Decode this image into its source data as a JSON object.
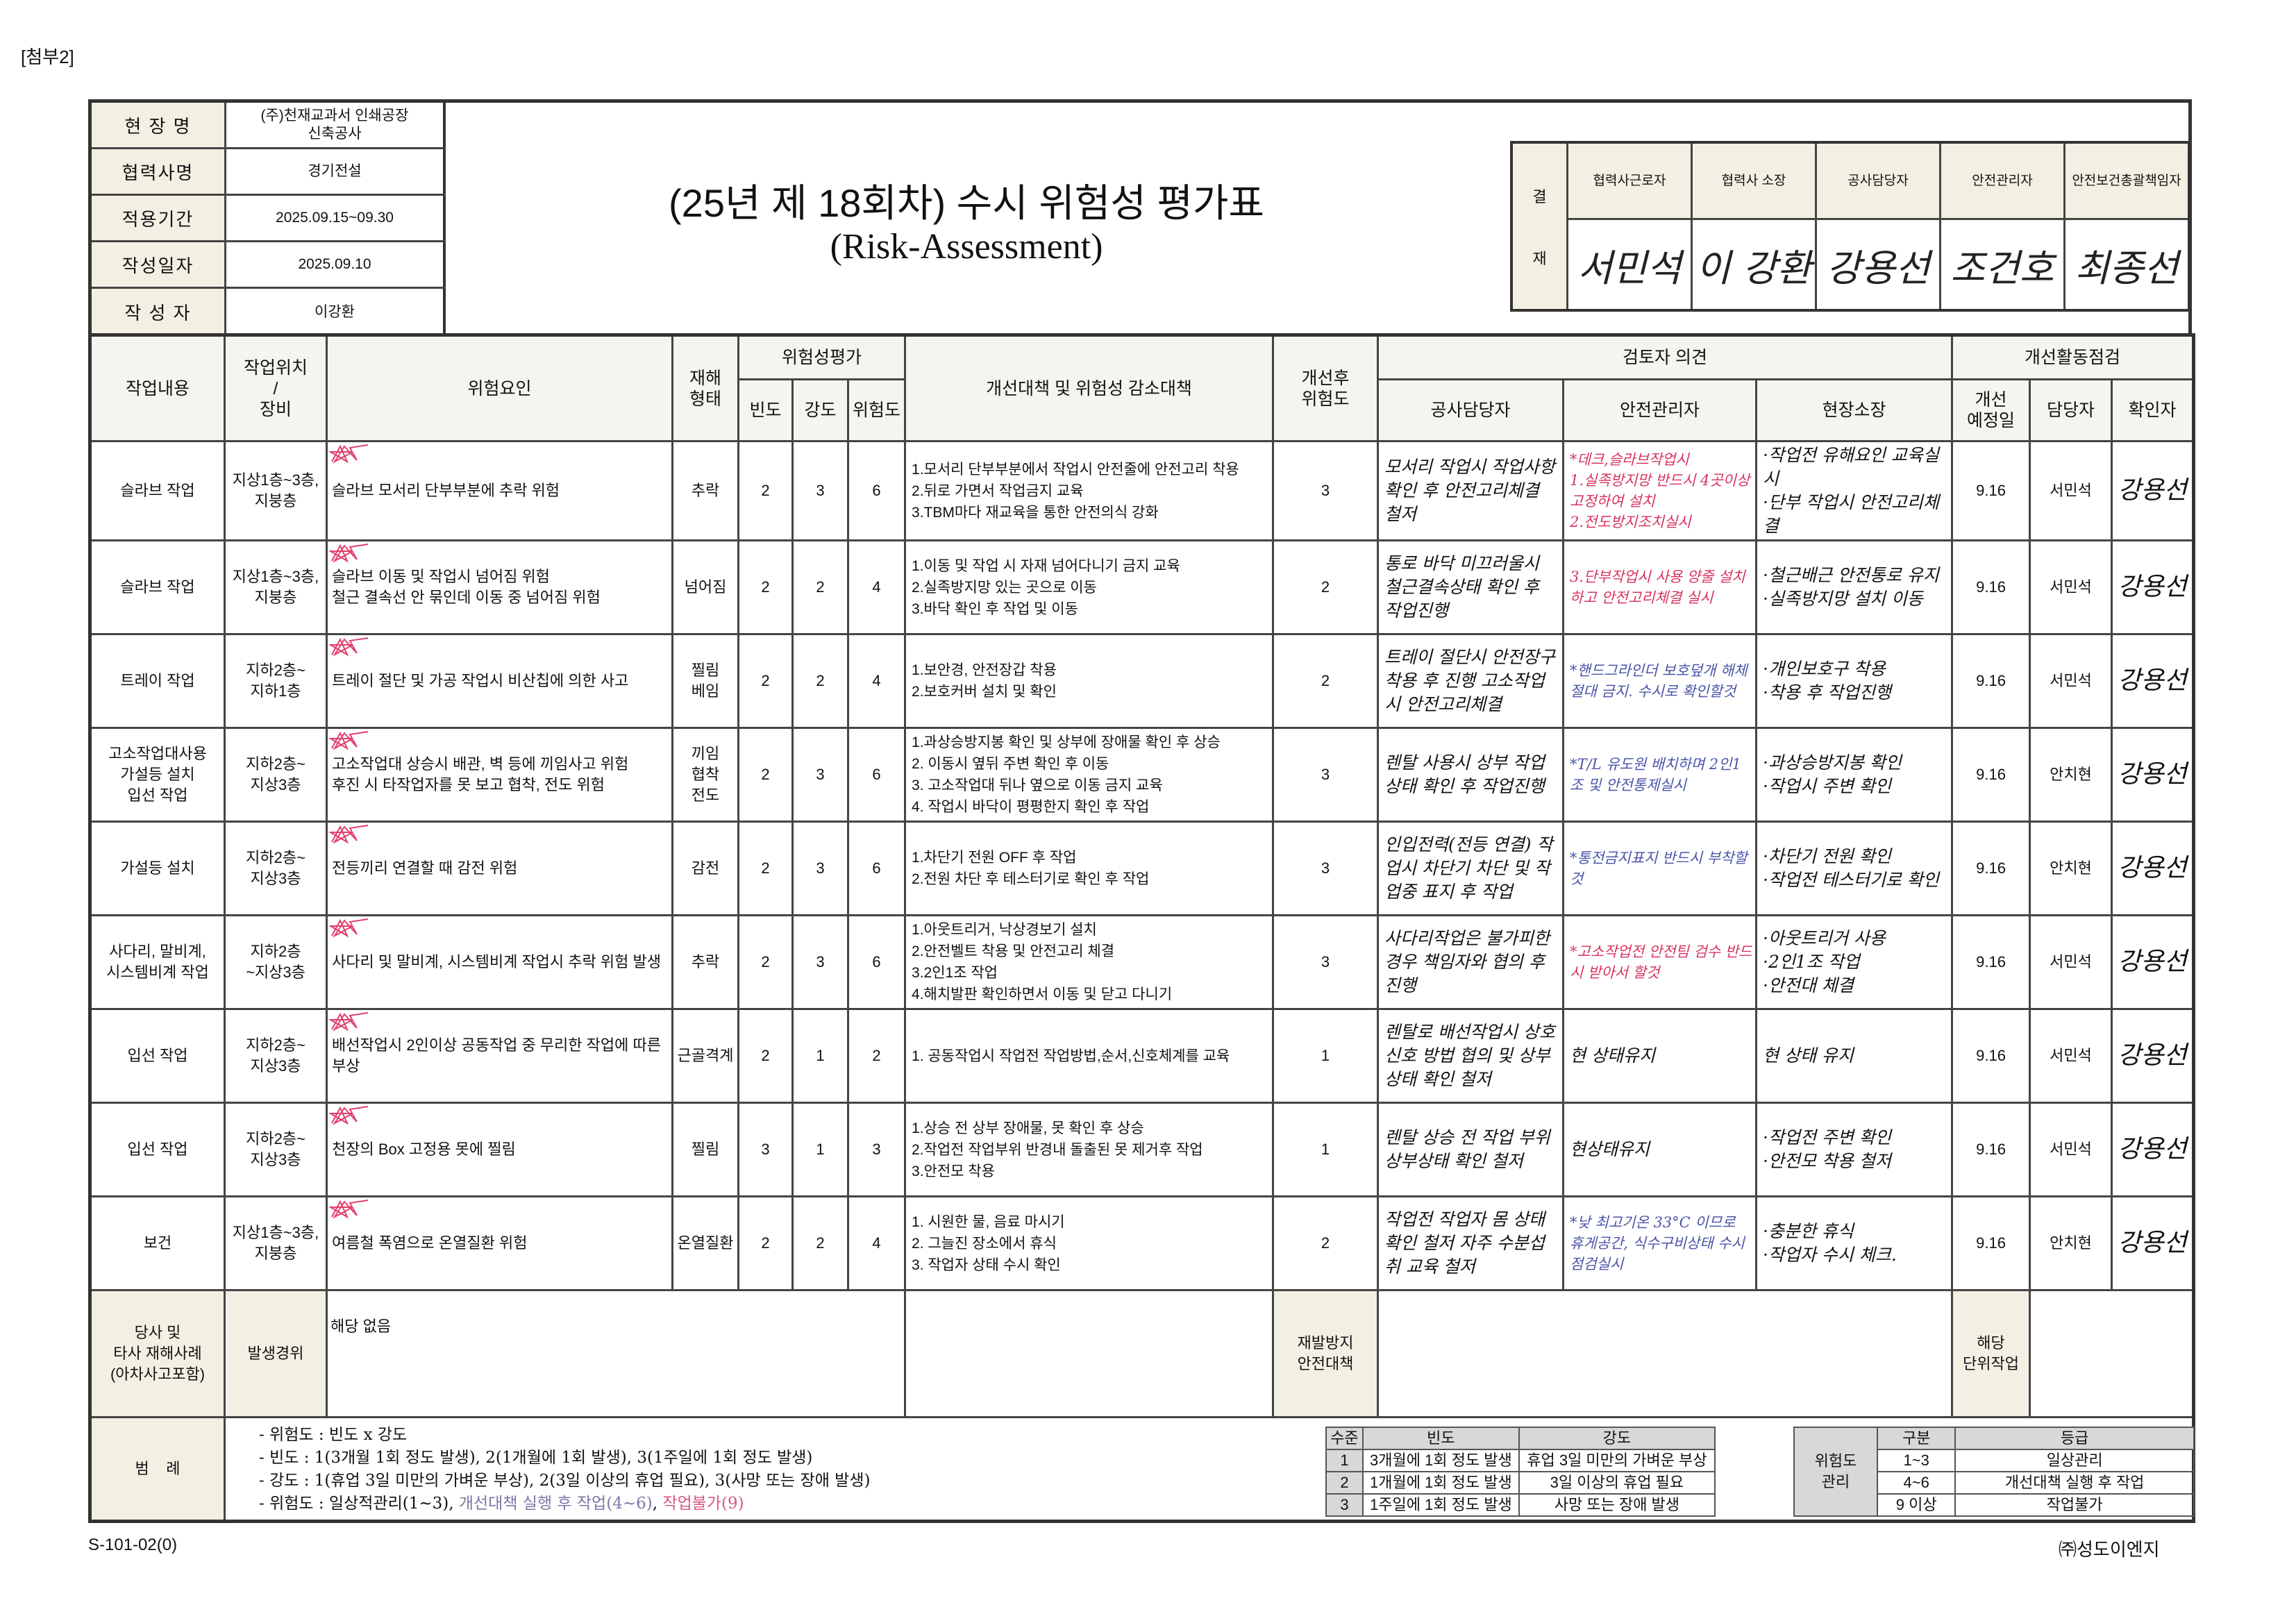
{
  "attachment_label": "[첨부2]",
  "doc_number": "S-101-02(0)",
  "company": "㈜성도이엔지",
  "info": [
    {
      "label": "현 장 명",
      "value": "(주)천재교과서 인쇄공장\n신축공사"
    },
    {
      "label": "협력사명",
      "value": "경기전설"
    },
    {
      "label": "적용기간",
      "value": "2025.09.15~09.30"
    },
    {
      "label": "작성일자",
      "value": "2025.09.10"
    },
    {
      "label": "작 성 자",
      "value": "이강환"
    }
  ],
  "title": {
    "main": "(25년 제 18회차) 수시 위험성 평가표",
    "sub": "(Risk-Assessment)"
  },
  "approval": {
    "side_top": "결",
    "side_bottom": "재",
    "columns": [
      {
        "role": "협력사근로자",
        "signature": "서민석"
      },
      {
        "role": "협력사 소장",
        "signature": "이 강환"
      },
      {
        "role": "공사담당자",
        "signature": "강용선"
      },
      {
        "role": "안전관리자",
        "signature": "조건호"
      },
      {
        "role": "안전보건총괄책임자",
        "signature": "최종선"
      }
    ]
  },
  "headers": {
    "task": "작업내용",
    "location": "작업위치\n/\n장비",
    "hazard": "위험요인",
    "type": "재해\n형태",
    "risk_eval": "위험성평가",
    "freq": "빈도",
    "severity": "강도",
    "risk": "위험도",
    "measures": "개선대책 및 위험성 감소대책",
    "after_risk": "개선후\n위험도",
    "reviewer": "검토자 의견",
    "rev_construction": "공사담당자",
    "rev_safety": "안전관리자",
    "rev_site": "현장소장",
    "improvement": "개선활동점검",
    "planned_date": "개선\n예정일",
    "manager": "담당자",
    "confirmer": "확인자"
  },
  "rows": [
    {
      "task": "슬라브 작업",
      "location": "지상1층~3층, 지붕층",
      "hazard": "슬라브 모서리 단부부분에 추락 위험",
      "type": "추락",
      "freq": 2,
      "severity": 3,
      "risk": 6,
      "measures": "1.모서리 단부부분에서 작업시 안전줄에 안전고리 착용\n2.뒤로 가면서 작업금지 교육\n3.TBM마다 재교육을 통한 안전의식 강화",
      "after": 3,
      "rev_construction": "모서리 작업시 작업사항 확인 후 안전고리체결 철저",
      "rev_safety": "*데크,슬라브작업시\n1.실족방지망 반드시 4곳이상 고정하여 설치\n2.전도방지조치실시",
      "rev_safety_color": "red",
      "rev_site": "·작업전 유해요인 교육실시\n·단부 작업시 안전고리체결",
      "date": "9.16",
      "manager": "서민석",
      "confirmer": "강용선"
    },
    {
      "task": "슬라브 작업",
      "location": "지상1층~3층, 지붕층",
      "hazard": "슬라브 이동 및 작업시 넘어짐 위험\n철근 결속선 안 묶인데 이동 중 넘어짐 위험",
      "type": "넘어짐",
      "freq": 2,
      "severity": 2,
      "risk": 4,
      "measures": "1.이동 및 작업 시 자재 넘어다니기 금지 교육\n2.실족방지망 있는 곳으로 이동\n3.바닥 확인 후 작업 및 이동",
      "after": 2,
      "rev_construction": "통로 바닥 미끄러울시 철근결속상태 확인 후 작업진행",
      "rev_safety": "3.단부작업시 사용 양줄 설치하고 안전고리체결 실시",
      "rev_safety_color": "red",
      "rev_site": "·철근배근 안전통로 유지\n·실족방지망 설치 이동",
      "date": "9.16",
      "manager": "서민석",
      "confirmer": "강용선"
    },
    {
      "task": "트레이 작업",
      "location": "지하2층~\n지하1층",
      "hazard": "트레이 절단 및 가공 작업시 비산칩에 의한 사고",
      "type": "찔림\n베임",
      "freq": 2,
      "severity": 2,
      "risk": 4,
      "measures": "1.보안경, 안전장갑 착용\n2.보호커버 설치 및 확인",
      "after": 2,
      "rev_construction": "트레이 절단시 안전장구 착용 후 진행 고소작업시 안전고리체결",
      "rev_safety": "*핸드그라인더 보호덮개 해체절대 금지. 수시로 확인할것",
      "rev_safety_color": "blue",
      "rev_site": "·개인보호구 착용\n·착용 후 작업진행",
      "date": "9.16",
      "manager": "서민석",
      "confirmer": "강용선"
    },
    {
      "task": "고소작업대사용\n가설등 설치\n입선 작업",
      "location": "지하2층~\n지상3층",
      "hazard": "고소작업대 상승시 배관, 벽 등에 끼임사고 위험\n후진 시 타작업자를 못 보고 협착, 전도 위험",
      "type": "끼임\n협착\n전도",
      "freq": 2,
      "severity": 3,
      "risk": 6,
      "measures": "1.과상승방지봉 확인 및 상부에 장애물 확인 후 상승\n2. 이동시 옆뒤 주변 확인 후 이동\n3. 고소작업대 뒤나 옆으로 이동 금지 교육\n4. 작업시 바닥이 평평한지 확인 후 작업",
      "after": 3,
      "rev_construction": "렌탈 사용시 상부 작업상태 확인 후 작업진행",
      "rev_safety": "*T/L 유도원 배치하며 2인1조 및 안전통제실시",
      "rev_safety_color": "blue",
      "rev_site": "·과상승방지봉 확인\n·작업시 주변 확인",
      "date": "9.16",
      "manager": "안치현",
      "confirmer": "강용선"
    },
    {
      "task": "가설등 설치",
      "location": "지하2층~\n지상3층",
      "hazard": "전등끼리 연결할 때 감전 위험",
      "type": "감전",
      "freq": 2,
      "severity": 3,
      "risk": 6,
      "measures": "1.차단기 전원 OFF 후 작업\n2.전원 차단 후 테스터기로 확인 후 작업",
      "after": 3,
      "rev_construction": "인입전력(전등 연결) 작업시 차단기 차단 및 작업중 표지 후 작업",
      "rev_safety": "*통전금지표지 반드시 부착할것",
      "rev_safety_color": "blue",
      "rev_site": "·차단기 전원 확인\n·작업전 테스터기로 확인",
      "date": "9.16",
      "manager": "안치현",
      "confirmer": "강용선"
    },
    {
      "task": "사다리, 말비계,\n시스템비계 작업",
      "location": "지하2층\n~지상3층",
      "hazard": "사다리 및 말비계, 시스템비계 작업시 추락 위험 발생",
      "type": "추락",
      "freq": 2,
      "severity": 3,
      "risk": 6,
      "measures": "1.아웃트리거, 낙상경보기 설치\n2.안전벨트 착용 및 안전고리 체결\n3.2인1조 작업\n4.해치발판 확인하면서 이동 및 닫고 다니기",
      "after": 3,
      "rev_construction": "사다리작업은 불가피한 경우 책임자와 협의 후 진행",
      "rev_safety": "*고소작업전 안전팀 검수 반드시 받아서 할것",
      "rev_safety_color": "red",
      "rev_site": "·아웃트리거 사용\n·2인1조 작업\n·안전대 체결",
      "date": "9.16",
      "manager": "서민석",
      "confirmer": "강용선"
    },
    {
      "task": "입선 작업",
      "location": "지하2층~\n지상3층",
      "hazard": "배선작업시 2인이상 공동작업 중 무리한 작업에 따른 부상",
      "type": "근골격계",
      "freq": 2,
      "severity": 1,
      "risk": 2,
      "measures": "1. 공동작업시 작업전 작업방법,순서,신호체계를 교육",
      "after": 1,
      "rev_construction": "렌탈로 배선작업시 상호신호 방법 협의 및 상부상태 확인 철저",
      "rev_safety": "현 상태유지",
      "rev_safety_color": "black",
      "rev_site": "현 상태 유지",
      "date": "9.16",
      "manager": "서민석",
      "confirmer": "강용선"
    },
    {
      "task": "입선 작업",
      "location": "지하2층~\n지상3층",
      "hazard": "천장의 Box 고정용 못에 찔림",
      "type": "찔림",
      "freq": 3,
      "severity": 1,
      "risk": 3,
      "measures": "1.상승 전 상부 장애물, 못 확인 후 상승\n2.작업전 작업부위 반경내 돌출된 못 제거후 작업\n3.안전모 착용",
      "after": 1,
      "rev_construction": "렌탈 상승 전 작업 부위 상부상태 확인 철저",
      "rev_safety": "현상태유지",
      "rev_safety_color": "black",
      "rev_site": "·작업전 주변 확인\n·안전모 착용 철저",
      "date": "9.16",
      "manager": "서민석",
      "confirmer": "강용선"
    },
    {
      "task": "보건",
      "location": "지상1층~3층, 지붕층",
      "hazard": "여름철 폭염으로 온열질환 위험",
      "type": "온열질환",
      "freq": 2,
      "severity": 2,
      "risk": 4,
      "measures": "1. 시원한 물, 음료 마시기\n2. 그늘진 장소에서 휴식\n3. 작업자 상태 수시 확인",
      "after": 2,
      "rev_construction": "작업전 작업자 몸 상태 확인 철저 자주 수분섭취 교육 철저",
      "rev_safety": "*낮 최고기온 33°C 이므로 휴게공간, 식수구비상태 수시점검실시",
      "rev_safety_color": "blue",
      "rev_site": "·충분한 휴식\n·작업자 수시 체크.",
      "date": "9.16",
      "manager": "안치현",
      "confirmer": "강용선"
    }
  ],
  "accident": {
    "label": "당사 및\n타사 재해사례\n(아차사고포함)",
    "occurrence_label": "발생경위",
    "occurrence_value": "해당 없음",
    "prevention_label": "재발방지\n안전대책",
    "prevention_value": "",
    "unit_work_label": "해당\n단위작업",
    "unit_work_value": ""
  },
  "legend": {
    "label": "범    례",
    "lines": [
      "- 위험도 : 빈도 x 강도",
      "- 빈도 : 1(3개월 1회 정도 발생), 2(1개월에 1회 발생), 3(1주일에 1회 정도 발생)",
      "- 강도 : 1(휴업 3일 미만의 가벼운 부상), 2(3일 이상의 휴업 필요), 3(사망 또는 장애 발생)"
    ],
    "risk_line_prefix": "- 위험도 : 일상적관리(1~3), ",
    "risk_line_mid": "개선대책 실행 후 작업(4~6)",
    "risk_line_sep": ", ",
    "risk_line_end": "작업불가(9)",
    "mid_color": "#7a78a8",
    "end_color": "#d8587f",
    "scale_table": {
      "headers": [
        "수준",
        "빈도",
        "강도"
      ],
      "rows": [
        [
          "1",
          "3개월에 1회 정도 발생",
          "휴업 3일 미만의 가벼운 부상"
        ],
        [
          "2",
          "1개월에 1회 정도 발생",
          "3일 이상의 휴업 필요"
        ],
        [
          "3",
          "1주일에 1회 정도 발생",
          "사망 또는 장애 발생"
        ]
      ]
    },
    "grade_table": {
      "side": "위험도\n관리",
      "headers": [
        "구분",
        "등급"
      ],
      "rows": [
        [
          "1~3",
          "일상관리"
        ],
        [
          "4~6",
          "개선대책 실행 후 작업"
        ],
        [
          "9 이상",
          "작업불가"
        ]
      ]
    }
  }
}
